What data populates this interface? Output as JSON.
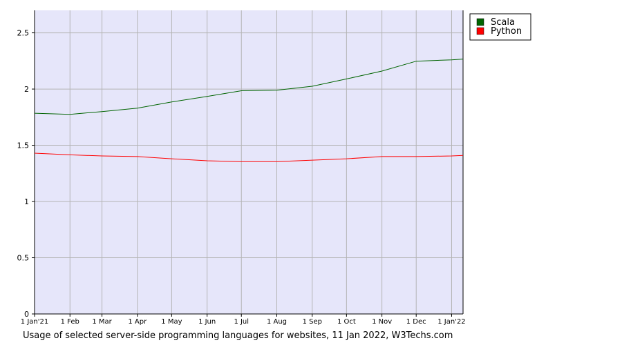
{
  "chart_data": {
    "type": "line",
    "caption": "Usage of selected server-side programming languages for websites, 11 Jan 2022, W3Techs.com",
    "x": [
      "2021-01-01",
      "2021-02-01",
      "2021-03-01",
      "2021-04-01",
      "2021-05-01",
      "2021-06-01",
      "2021-07-01",
      "2021-08-01",
      "2021-09-01",
      "2021-10-01",
      "2021-11-01",
      "2021-12-01",
      "2022-01-01",
      "2022-01-11"
    ],
    "series": [
      {
        "name": "Scala",
        "color": "#006400",
        "values": [
          1.785,
          1.775,
          1.8,
          1.83,
          1.885,
          1.935,
          1.985,
          1.99,
          2.025,
          2.09,
          2.16,
          2.248,
          2.26,
          2.267
        ]
      },
      {
        "name": "Python",
        "color": "#ff0000",
        "values": [
          1.43,
          1.415,
          1.405,
          1.4,
          1.38,
          1.362,
          1.355,
          1.355,
          1.368,
          1.38,
          1.4,
          1.4,
          1.405,
          1.41
        ]
      }
    ],
    "xlim": [
      "2021-01-01",
      "2022-01-11"
    ],
    "xticks": [
      {
        "value": "2021-01-01",
        "label": "1 Jan'21"
      },
      {
        "value": "2021-02-01",
        "label": "1 Feb"
      },
      {
        "value": "2021-03-01",
        "label": "1 Mar"
      },
      {
        "value": "2021-04-01",
        "label": "1 Apr"
      },
      {
        "value": "2021-05-01",
        "label": "1 May"
      },
      {
        "value": "2021-06-01",
        "label": "1 Jun"
      },
      {
        "value": "2021-07-01",
        "label": "1 Jul"
      },
      {
        "value": "2021-08-01",
        "label": "1 Aug"
      },
      {
        "value": "2021-09-01",
        "label": "1 Sep"
      },
      {
        "value": "2021-10-01",
        "label": "1 Oct"
      },
      {
        "value": "2021-11-01",
        "label": "1 Nov"
      },
      {
        "value": "2021-12-01",
        "label": "1 Dec"
      },
      {
        "value": "2022-01-01",
        "label": "1 Jan'22"
      }
    ],
    "ylim": [
      0,
      2.7
    ],
    "yticks": [
      0,
      0.5,
      1,
      1.5,
      2,
      2.5
    ],
    "grid": true,
    "background": "#e6e6fa",
    "legend": "right"
  }
}
